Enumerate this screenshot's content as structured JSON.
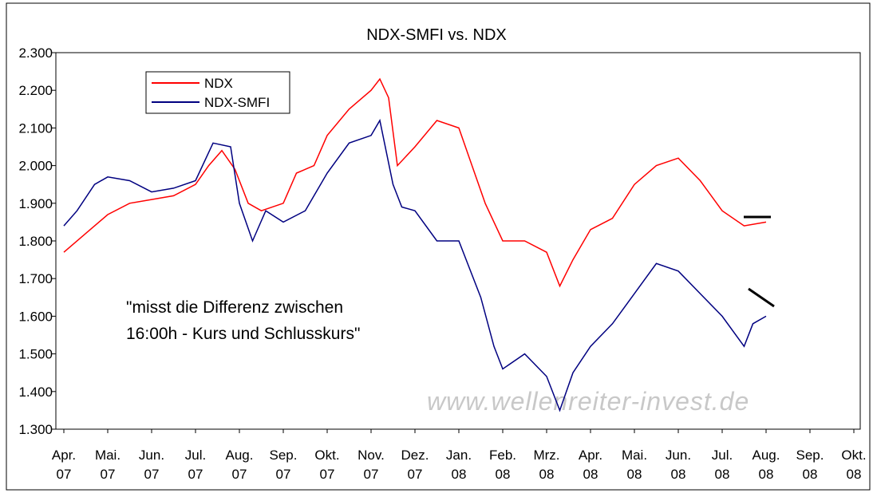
{
  "chart_data": {
    "type": "line",
    "title": "NDX-SMFI vs. NDX",
    "annotations": [
      "\"misst die Differenz zwischen",
      "16:00h - Kurs und Schlusskurs\""
    ],
    "watermark": "www.wellenreiter-invest.de",
    "xlim": [
      0,
      18
    ],
    "xticks": [
      {
        "value": 0,
        "label": "Apr. 07"
      },
      {
        "value": 1,
        "label": "Mai. 07"
      },
      {
        "value": 2,
        "label": "Jun. 07"
      },
      {
        "value": 3,
        "label": "Jul. 07"
      },
      {
        "value": 4,
        "label": "Aug. 07"
      },
      {
        "value": 5,
        "label": "Sep. 07"
      },
      {
        "value": 6,
        "label": "Okt. 07"
      },
      {
        "value": 7,
        "label": "Nov. 07"
      },
      {
        "value": 8,
        "label": "Dez. 07"
      },
      {
        "value": 9,
        "label": "Jan. 08"
      },
      {
        "value": 10,
        "label": "Feb. 08"
      },
      {
        "value": 11,
        "label": "Mrz. 08"
      },
      {
        "value": 12,
        "label": "Apr. 08"
      },
      {
        "value": 13,
        "label": "Mai. 08"
      },
      {
        "value": 14,
        "label": "Jun. 08"
      },
      {
        "value": 15,
        "label": "Jul. 08"
      },
      {
        "value": 16,
        "label": "Aug. 08"
      },
      {
        "value": 17,
        "label": "Sep. 08"
      },
      {
        "value": 18,
        "label": "Okt. 08"
      }
    ],
    "ylim": [
      1300,
      2300
    ],
    "yticks": [
      {
        "value": 1300,
        "label": "1.300"
      },
      {
        "value": 1400,
        "label": "1.400"
      },
      {
        "value": 1500,
        "label": "1.500"
      },
      {
        "value": 1600,
        "label": "1.600"
      },
      {
        "value": 1700,
        "label": "1.700"
      },
      {
        "value": 1800,
        "label": "1.800"
      },
      {
        "value": 1900,
        "label": "1.900"
      },
      {
        "value": 2000,
        "label": "2.000"
      },
      {
        "value": 2100,
        "label": "2.100"
      },
      {
        "value": 2200,
        "label": "2.200"
      },
      {
        "value": 2300,
        "label": "2.300"
      }
    ],
    "legend": "upper left",
    "series": [
      {
        "name": "NDX",
        "color": "#ff0000",
        "x": [
          0,
          0.5,
          1,
          1.5,
          2,
          2.5,
          3,
          3.3,
          3.6,
          3.9,
          4.2,
          4.5,
          5,
          5.3,
          5.7,
          6,
          6.5,
          7,
          7.2,
          7.4,
          7.6,
          8,
          8.5,
          9,
          9.3,
          9.6,
          10,
          10.5,
          11,
          11.3,
          11.6,
          12,
          12.5,
          13,
          13.5,
          14,
          14.5,
          15,
          15.5,
          16
        ],
        "values": [
          1770,
          1820,
          1870,
          1900,
          1910,
          1920,
          1950,
          2000,
          2040,
          1990,
          1900,
          1880,
          1900,
          1980,
          2000,
          2080,
          2150,
          2200,
          2230,
          2180,
          2000,
          2050,
          2120,
          2100,
          2000,
          1900,
          1800,
          1800,
          1770,
          1680,
          1750,
          1830,
          1860,
          1950,
          2000,
          2020,
          1960,
          1880,
          1840,
          1850
        ]
      },
      {
        "name": "NDX-SMFI",
        "color": "#000080",
        "x": [
          0,
          0.3,
          0.7,
          1,
          1.5,
          2,
          2.5,
          3,
          3.4,
          3.8,
          4,
          4.3,
          4.6,
          5,
          5.5,
          6,
          6.5,
          7,
          7.2,
          7.5,
          7.7,
          8,
          8.5,
          9,
          9.5,
          9.8,
          10,
          10.5,
          11,
          11.3,
          11.6,
          12,
          12.5,
          13,
          13.5,
          14,
          14.5,
          15,
          15.5,
          15.7,
          16
        ],
        "values": [
          1840,
          1880,
          1950,
          1970,
          1960,
          1930,
          1940,
          1960,
          2060,
          2050,
          1900,
          1800,
          1880,
          1850,
          1880,
          1980,
          2060,
          2080,
          2120,
          1950,
          1890,
          1880,
          1800,
          1800,
          1650,
          1520,
          1460,
          1500,
          1440,
          1350,
          1450,
          1520,
          1580,
          1660,
          1740,
          1720,
          1660,
          1600,
          1520,
          1580,
          1600
        ]
      }
    ]
  }
}
